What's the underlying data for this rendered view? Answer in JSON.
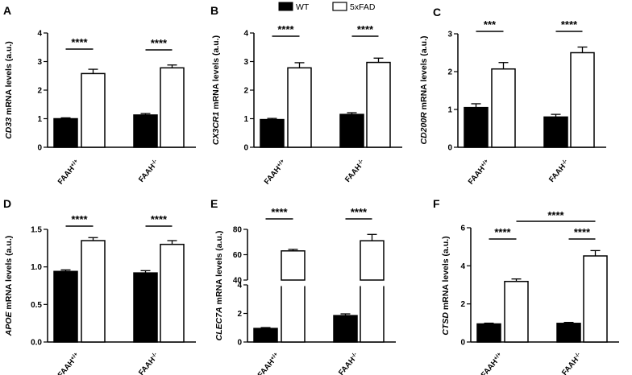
{
  "legend": {
    "items": [
      {
        "name": "WT",
        "color": "#000000",
        "fill": "solid"
      },
      {
        "name": "5xFAD",
        "color": "#ffffff",
        "fill": "open"
      }
    ]
  },
  "chart_data": [
    {
      "type": "bar",
      "panel": "A",
      "ylabel_gene": "CD33",
      "ylabel_rest": " mRNA levels (a.u.)",
      "ylim": [
        0,
        4
      ],
      "yticks": [
        "0",
        "1",
        "2",
        "3",
        "4"
      ],
      "categories": [
        {
          "base": "FAAH",
          "sup": "+/+"
        },
        {
          "base": "FAAH",
          "sup": "-/-"
        }
      ],
      "series": [
        {
          "name": "WT",
          "values": [
            1.0,
            1.13
          ],
          "errors": [
            0.03,
            0.05
          ]
        },
        {
          "name": "5xFAD",
          "values": [
            2.58,
            2.78
          ],
          "errors": [
            0.15,
            0.1
          ]
        }
      ],
      "significance": [
        {
          "category": 0,
          "label": "****"
        },
        {
          "category": 1,
          "label": "****"
        }
      ]
    },
    {
      "type": "bar",
      "panel": "B",
      "ylabel_gene": "CX3CR1",
      "ylabel_rest": " mRNA levels (a.u.)",
      "ylim": [
        0,
        4
      ],
      "yticks": [
        "0",
        "1",
        "2",
        "3",
        "4"
      ],
      "categories": [
        {
          "base": "FAAH",
          "sup": "+/+"
        },
        {
          "base": "FAAH",
          "sup": "-/-"
        }
      ],
      "series": [
        {
          "name": "WT",
          "values": [
            0.97,
            1.15
          ],
          "errors": [
            0.04,
            0.06
          ]
        },
        {
          "name": "5xFAD",
          "values": [
            2.78,
            2.97
          ],
          "errors": [
            0.18,
            0.15
          ]
        }
      ],
      "significance": [
        {
          "category": 0,
          "label": "****"
        },
        {
          "category": 1,
          "label": "****"
        }
      ]
    },
    {
      "type": "bar",
      "panel": "C",
      "ylabel_gene": "CD200R",
      "ylabel_rest": " mRNA levels (a.u.)",
      "ylim": [
        0,
        3
      ],
      "yticks": [
        "0",
        "1",
        "2",
        "3"
      ],
      "categories": [
        {
          "base": "FAAH",
          "sup": "+/+"
        },
        {
          "base": "FAAH",
          "sup": "-/-"
        }
      ],
      "series": [
        {
          "name": "WT",
          "values": [
            1.05,
            0.8
          ],
          "errors": [
            0.1,
            0.07
          ]
        },
        {
          "name": "5xFAD",
          "values": [
            2.07,
            2.5
          ],
          "errors": [
            0.17,
            0.15
          ]
        }
      ],
      "significance": [
        {
          "category": 0,
          "label": "***"
        },
        {
          "category": 1,
          "label": "****"
        }
      ]
    },
    {
      "type": "bar",
      "panel": "D",
      "ylabel_gene": "APOE",
      "ylabel_rest": " mRNA levels (a.u.)",
      "ylim": [
        0,
        1.5
      ],
      "yticks": [
        "0.0",
        "0.5",
        "1.0",
        "1.5"
      ],
      "categories": [
        {
          "base": "FAAH",
          "sup": "+/+"
        },
        {
          "base": "FAAH",
          "sup": "-/-"
        }
      ],
      "series": [
        {
          "name": "WT",
          "values": [
            0.94,
            0.92
          ],
          "errors": [
            0.02,
            0.03
          ]
        },
        {
          "name": "5xFAD",
          "values": [
            1.35,
            1.3
          ],
          "errors": [
            0.04,
            0.05
          ]
        }
      ],
      "significance": [
        {
          "category": 0,
          "label": "****"
        },
        {
          "category": 1,
          "label": "****"
        }
      ]
    },
    {
      "type": "bar",
      "panel": "E",
      "ylabel_gene": "CLEC7A",
      "ylabel_rest": " mRNA levels (a.u.)",
      "broken_axis": {
        "lower": [
          0,
          4
        ],
        "upper": [
          40,
          80
        ]
      },
      "yticks": [
        "0",
        "2",
        "4",
        "40",
        "60",
        "80"
      ],
      "categories": [
        {
          "base": "FAAH",
          "sup": "+/+"
        },
        {
          "base": "FAAH",
          "sup": "-/-"
        }
      ],
      "series": [
        {
          "name": "WT",
          "values": [
            0.95,
            1.85
          ],
          "errors": [
            0.06,
            0.12
          ]
        },
        {
          "name": "5xFAD",
          "values": [
            63,
            71
          ],
          "errors": [
            1.2,
            5
          ]
        }
      ],
      "significance": [
        {
          "category": 0,
          "label": "****"
        },
        {
          "category": 1,
          "label": "****"
        }
      ]
    },
    {
      "type": "bar",
      "panel": "F",
      "ylabel_gene": "CTSD",
      "ylabel_rest": " mRNA levels (a.u.)",
      "ylim": [
        0,
        6
      ],
      "yticks": [
        "0",
        "2",
        "4",
        "6"
      ],
      "categories": [
        {
          "base": "FAAH",
          "sup": "+/+"
        },
        {
          "base": "FAAH",
          "sup": "-/-"
        }
      ],
      "series": [
        {
          "name": "WT",
          "values": [
            0.95,
            0.98
          ],
          "errors": [
            0.04,
            0.05
          ]
        },
        {
          "name": "5xFAD",
          "values": [
            3.18,
            4.52
          ],
          "errors": [
            0.13,
            0.28
          ]
        }
      ],
      "significance": [
        {
          "category": 0,
          "label": "****"
        },
        {
          "category": 1,
          "label": "****"
        },
        {
          "between": "5xFAD",
          "label": "****"
        }
      ]
    }
  ]
}
